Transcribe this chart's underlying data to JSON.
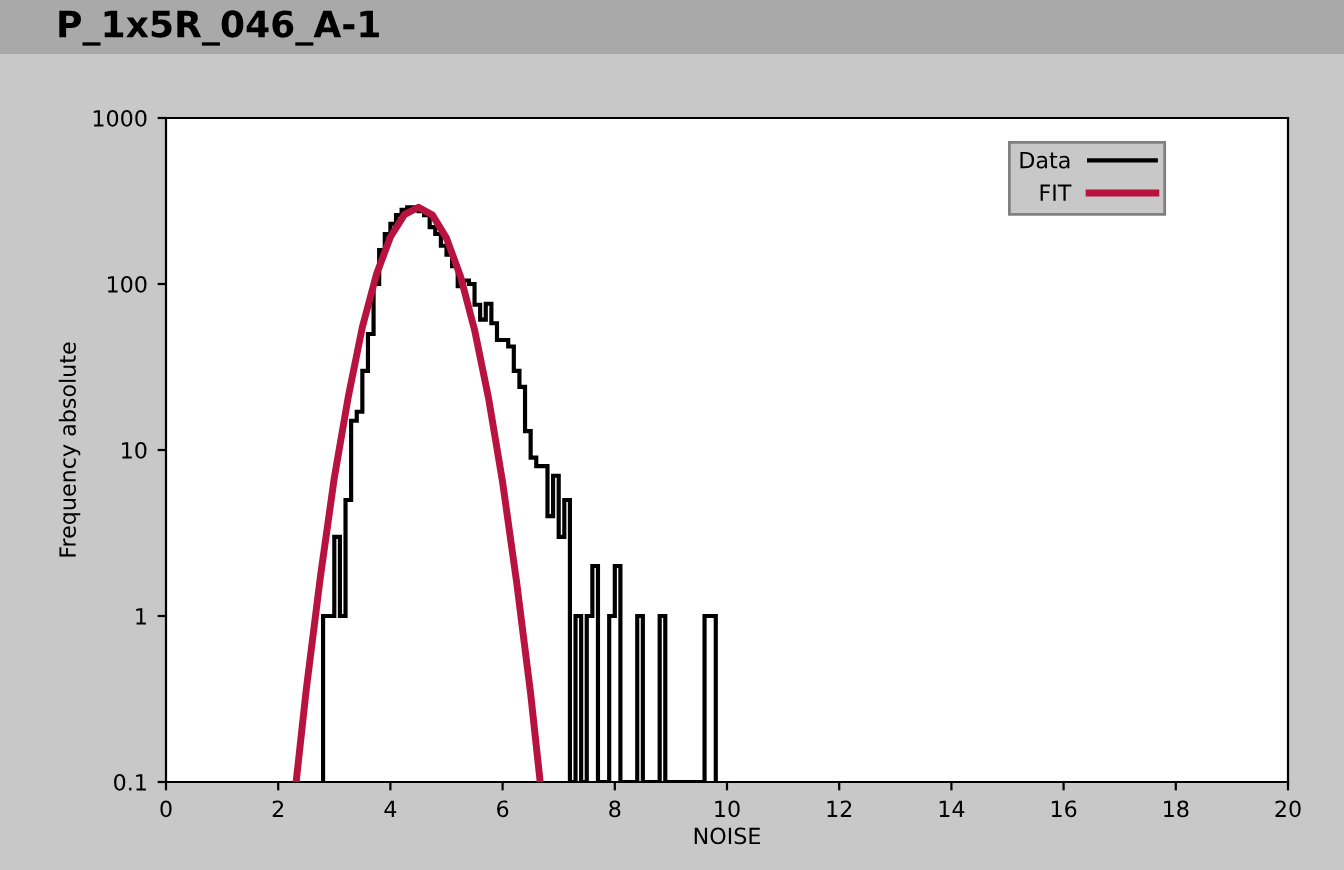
{
  "chart_data": {
    "type": "histogram",
    "title": "P_1x5R_046_A-1",
    "xlabel": "NOISE",
    "ylabel": "Frequency absolute",
    "log": "y",
    "xlim": [
      0,
      20
    ],
    "xticks": [
      0,
      2,
      4,
      6,
      8,
      10,
      12,
      14,
      16,
      18,
      20
    ],
    "ylim": [
      0.1,
      1000
    ],
    "yticks": [
      0.1,
      1,
      10,
      100,
      1000
    ],
    "grid": false,
    "legend": "top right",
    "series": [
      {
        "name": "Data",
        "color": "#000000",
        "bins": [
          2.8,
          2.9,
          3.0,
          3.1,
          3.2,
          3.3,
          3.4,
          3.5,
          3.6,
          3.7,
          3.8,
          3.9,
          4.0,
          4.1,
          4.2,
          4.3,
          4.4,
          4.5,
          4.6,
          4.7,
          4.8,
          4.9,
          5.0,
          5.1,
          5.2,
          5.3,
          5.4,
          5.5,
          5.6,
          5.7,
          5.8,
          5.9,
          6.0,
          6.1,
          6.2,
          6.3,
          6.4,
          6.5,
          6.6,
          6.7,
          6.8,
          6.9,
          7.0,
          7.1,
          7.2,
          7.3,
          7.4,
          7.5,
          7.6,
          7.7,
          7.8,
          7.9,
          8.0,
          8.1,
          8.2,
          8.3,
          8.4,
          8.5,
          8.6,
          8.7,
          8.8,
          8.9,
          9.0,
          9.1,
          9.2,
          9.3,
          9.4,
          9.5,
          9.6,
          9.7,
          9.8
        ],
        "values": [
          1,
          1,
          3,
          1,
          5,
          15,
          17,
          30,
          50,
          100,
          160,
          200,
          230,
          260,
          280,
          290,
          290,
          275,
          260,
          220,
          200,
          170,
          150,
          128,
          97,
          105,
          100,
          75,
          61,
          76,
          58,
          46,
          46,
          42,
          30,
          24,
          13,
          9,
          8,
          8,
          4,
          7,
          3,
          5,
          null,
          1,
          null,
          1,
          2,
          null,
          null,
          1,
          2,
          null,
          null,
          null,
          1,
          null,
          null,
          null,
          1,
          null,
          null,
          null,
          null,
          null,
          null,
          null,
          1,
          1
        ]
      },
      {
        "name": "FIT",
        "type": "line",
        "color": "#b8123f",
        "x": [
          2.32,
          2.5,
          2.75,
          3.0,
          3.25,
          3.5,
          3.75,
          4.0,
          4.25,
          4.5,
          4.75,
          5.0,
          5.25,
          5.5,
          5.75,
          6.0,
          6.25,
          6.5,
          6.67
        ],
        "values": [
          0.1,
          0.36,
          1.7,
          6.8,
          21,
          55,
          114,
          192,
          262,
          290,
          260,
          189,
          111,
          53,
          20.5,
          6.4,
          1.6,
          0.34,
          0.1
        ]
      }
    ]
  }
}
